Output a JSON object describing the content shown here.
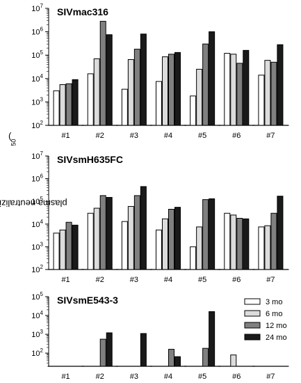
{
  "figure": {
    "ylabel_text": "plasma neutralizing titers (IC",
    "ylabel_sub": "50",
    "ylabel_close": ")"
  },
  "colors": {
    "3 mo": "#ffffff",
    "6 mo": "#dcdcdc",
    "12 mo": "#808080",
    "24 mo": "#1a1a1a"
  },
  "chart_data": [
    {
      "type": "bar",
      "title": "SIVmac316",
      "yscale": "log",
      "ylim": [
        100,
        10000000
      ],
      "ytick_exponents": [
        2,
        3,
        4,
        5,
        6,
        7
      ],
      "categories": [
        "#1",
        "#2",
        "#3",
        "#4",
        "#5",
        "#6",
        "#7"
      ],
      "series": [
        {
          "name": "3 mo",
          "values": [
            3000,
            16000,
            3500,
            7500,
            1800,
            120000,
            14000
          ]
        },
        {
          "name": "6 mo",
          "values": [
            5500,
            70000,
            65000,
            85000,
            25000,
            110000,
            60000
          ]
        },
        {
          "name": "12 mo",
          "values": [
            6000,
            2800000,
            180000,
            110000,
            300000,
            45000,
            50000
          ]
        },
        {
          "name": "24 mo",
          "values": [
            9000,
            750000,
            800000,
            130000,
            1000000,
            160000,
            280000
          ]
        }
      ]
    },
    {
      "type": "bar",
      "title": "SIVsmH635FC",
      "yscale": "log",
      "ylim": [
        100,
        10000000
      ],
      "ytick_exponents": [
        2,
        3,
        4,
        5,
        6,
        7
      ],
      "categories": [
        "#1",
        "#2",
        "#3",
        "#4",
        "#5",
        "#6",
        "#7"
      ],
      "series": [
        {
          "name": "3 mo",
          "values": [
            4000,
            30000,
            13000,
            5500,
            1000,
            30000,
            7500
          ]
        },
        {
          "name": "6 mo",
          "values": [
            5500,
            50000,
            60000,
            17000,
            7500,
            25000,
            8500
          ]
        },
        {
          "name": "12 mo",
          "values": [
            12000,
            180000,
            180000,
            45000,
            120000,
            18000,
            30000
          ]
        },
        {
          "name": "24 mo",
          "values": [
            9000,
            150000,
            450000,
            55000,
            130000,
            17000,
            170000
          ]
        }
      ]
    },
    {
      "type": "bar",
      "title": "SIVsmE543-3",
      "yscale": "log",
      "ylim": [
        20,
        100000
      ],
      "ytick_exponents": [
        2,
        3,
        4,
        5
      ],
      "categories": [
        "#1",
        "#2",
        "#3",
        "#4",
        "#5",
        "#6",
        "#7"
      ],
      "legend": [
        "3 mo",
        "6 mo",
        "12 mo",
        "24 mo"
      ],
      "series": [
        {
          "name": "3 mo",
          "values": [
            20,
            20,
            20,
            20,
            20,
            20,
            20
          ]
        },
        {
          "name": "6 mo",
          "values": [
            20,
            20,
            20,
            20,
            20,
            80,
            20
          ]
        },
        {
          "name": "12 mo",
          "values": [
            20,
            550,
            20,
            160,
            180,
            20,
            20
          ]
        },
        {
          "name": "24 mo",
          "values": [
            20,
            1200,
            1100,
            65,
            16000,
            20,
            20
          ]
        }
      ]
    }
  ]
}
